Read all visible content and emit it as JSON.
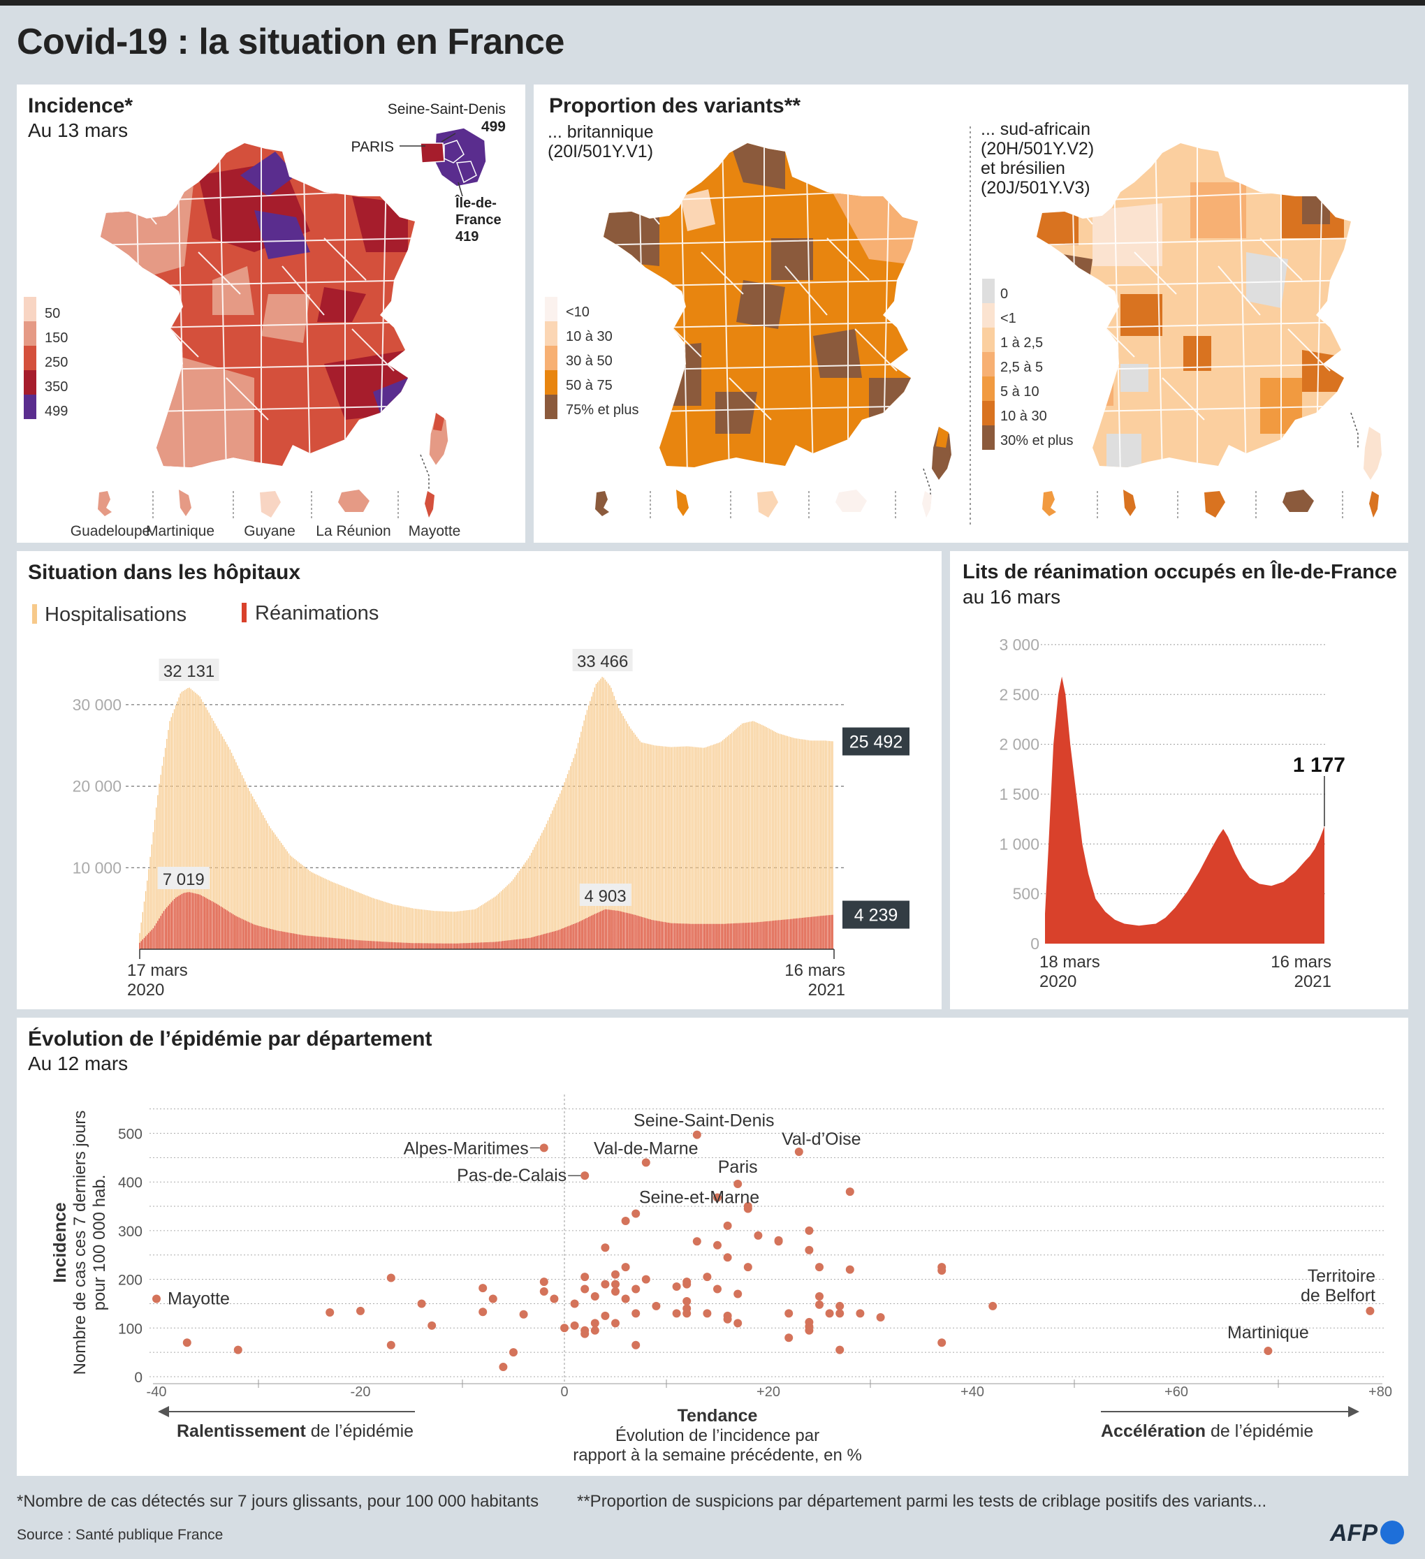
{
  "header": {
    "title": "Covid-19 : la situation en France"
  },
  "incidence": {
    "title": "Incidence*",
    "subtitle": "Au 13 mars",
    "idf_labels": {
      "ssd": "Seine-Saint-Denis",
      "ssd_val": "499",
      "paris": "PARIS",
      "idf1": "Île-de-",
      "idf2": "France",
      "idf_val": "419"
    },
    "legend": [
      {
        "label": "50",
        "color": "#f8d5c3"
      },
      {
        "label": "150",
        "color": "#e59a85"
      },
      {
        "label": "250",
        "color": "#d4503c"
      },
      {
        "label": "350",
        "color": "#a61d2c"
      },
      {
        "label": "499",
        "color": "#5a2d8e"
      }
    ],
    "territories": [
      "Guadeloupe",
      "Martinique",
      "Guyane",
      "La Réunion",
      "Mayotte"
    ]
  },
  "variants": {
    "title": "Proportion des variants**",
    "uk_label1": "... britannique",
    "uk_label2": "(20I/501Y.V1)",
    "sa_label1": "... sud-africain",
    "sa_label2": "(20H/501Y.V2)",
    "sa_label3": "et brésilien",
    "sa_label4": "(20J/501Y.V3)",
    "uk_legend": [
      {
        "label": "<10",
        "color": "#fbf2ee"
      },
      {
        "label": "10 à 30",
        "color": "#fbd6b4"
      },
      {
        "label": "30 à 50",
        "color": "#f7b073"
      },
      {
        "label": "50 à 75",
        "color": "#e8850f"
      },
      {
        "label": "75% et plus",
        "color": "#8b5a3c"
      }
    ],
    "sa_legend": [
      {
        "label": "0",
        "color": "#dedede"
      },
      {
        "label": "<1",
        "color": "#fbe3d0"
      },
      {
        "label": "1 à 2,5",
        "color": "#fbcf9f"
      },
      {
        "label": "2,5 à 5",
        "color": "#f7b073"
      },
      {
        "label": "5 à 10",
        "color": "#f19a40"
      },
      {
        "label": "10 à 30",
        "color": "#d97320"
      },
      {
        "label": "30% et plus",
        "color": "#8b5a3c"
      }
    ]
  },
  "hospitals": {
    "title": "Situation dans les hôpitaux",
    "legend_hosp": "Hospitalisations",
    "legend_rea": "Réanimations",
    "peak1_hosp": "32 131",
    "peak2_hosp": "33 466",
    "last_hosp": "25 492",
    "peak1_rea": "7 019",
    "peak2_rea": "4 903",
    "last_rea": "4 239",
    "start_date1": "17 mars",
    "start_date2": "2020",
    "end_date1": "16 mars",
    "end_date2": "2021",
    "colors": {
      "hosp": "#f7c98a",
      "rea": "#d9412b"
    }
  },
  "icu_idf": {
    "title": "Lits de réanimation occupés en Île-de-France",
    "subtitle": "au 16 mars",
    "last_value": "1 177",
    "start_date1": "18 mars",
    "start_date2": "2020",
    "end_date1": "16 mars",
    "end_date2": "2021",
    "color": "#d9412b"
  },
  "scatter": {
    "title": "Évolution de l’épidémie par département",
    "subtitle": "Au 12 mars",
    "ylabel1": "Incidence",
    "ylabel2": "Nombre de cas ces 7 derniers jours",
    "ylabel3": "pour 100 000 hab.",
    "xlabel1": "Tendance",
    "xlabel2": "Évolution de l’incidence par",
    "xlabel3": "rapport à la semaine précédente, en %",
    "left_arrow_bold": "Ralentissement",
    "left_arrow_rest": " de l’épidémie",
    "right_arrow_bold": "Accélération",
    "right_arrow_rest": " de l’épidémie",
    "dot_color": "#d4735a"
  },
  "footer": {
    "note1": "*Nombre de cas détectés sur 7 jours glissants, pour 100 000 habitants",
    "note2": "**Proportion de suspicions par département parmi les tests de criblage positifs des variants...",
    "source": "Source : Santé publique France",
    "logo": "AFP"
  },
  "chart_data": [
    {
      "type": "area",
      "title": "Situation dans les hôpitaux",
      "x_start": "17 mars 2020",
      "x_end": "16 mars 2021",
      "ylim": [
        0,
        36000
      ],
      "yticks": [
        "10 000",
        "20 000",
        "30 000"
      ],
      "series": [
        {
          "name": "Hospitalisations",
          "points": [
            [
              0,
              2000
            ],
            [
              6,
              9000
            ],
            [
              14,
              20000
            ],
            [
              22,
              28000
            ],
            [
              30,
              31500
            ],
            [
              36,
              32131
            ],
            [
              44,
              31000
            ],
            [
              54,
              28000
            ],
            [
              66,
              24500
            ],
            [
              80,
              19500
            ],
            [
              95,
              15000
            ],
            [
              110,
              11500
            ],
            [
              125,
              9500
            ],
            [
              140,
              8300
            ],
            [
              155,
              7300
            ],
            [
              170,
              6300
            ],
            [
              185,
              5500
            ],
            [
              200,
              5000
            ],
            [
              215,
              4700
            ],
            [
              230,
              4600
            ],
            [
              245,
              4900
            ],
            [
              260,
              6500
            ],
            [
              272,
              8400
            ],
            [
              284,
              11200
            ],
            [
              296,
              15000
            ],
            [
              308,
              19500
            ],
            [
              318,
              24000
            ],
            [
              326,
              29000
            ],
            [
              333,
              32500
            ],
            [
              338,
              33466
            ],
            [
              344,
              32200
            ],
            [
              350,
              29500
            ],
            [
              358,
              27200
            ],
            [
              366,
              25400
            ],
            [
              376,
              25000
            ],
            [
              388,
              24800
            ],
            [
              400,
              24900
            ],
            [
              412,
              24700
            ],
            [
              424,
              25400
            ],
            [
              432,
              26500
            ],
            [
              440,
              27700
            ],
            [
              448,
              28000
            ],
            [
              456,
              27400
            ],
            [
              466,
              26500
            ],
            [
              478,
              25900
            ],
            [
              490,
              25600
            ],
            [
              500,
              25600
            ],
            [
              507,
              25492
            ]
          ]
        },
        {
          "name": "Réanimations",
          "points": [
            [
              0,
              800
            ],
            [
              10,
              2600
            ],
            [
              18,
              4800
            ],
            [
              26,
              6300
            ],
            [
              32,
              6900
            ],
            [
              36,
              7019
            ],
            [
              44,
              6700
            ],
            [
              56,
              5600
            ],
            [
              70,
              4100
            ],
            [
              84,
              3000
            ],
            [
              100,
              2300
            ],
            [
              120,
              1700
            ],
            [
              140,
              1400
            ],
            [
              160,
              1100
            ],
            [
              180,
              900
            ],
            [
              200,
              750
            ],
            [
              230,
              700
            ],
            [
              260,
              900
            ],
            [
              285,
              1400
            ],
            [
              305,
              2300
            ],
            [
              320,
              3300
            ],
            [
              332,
              4300
            ],
            [
              340,
              4903
            ],
            [
              350,
              4700
            ],
            [
              362,
              4200
            ],
            [
              374,
              3600
            ],
            [
              388,
              3200
            ],
            [
              405,
              3100
            ],
            [
              425,
              3100
            ],
            [
              450,
              3300
            ],
            [
              475,
              3700
            ],
            [
              495,
              4050
            ],
            [
              507,
              4239
            ]
          ]
        }
      ]
    },
    {
      "type": "area",
      "title": "Lits de réanimation occupés en Île-de-France",
      "x_start": "18 mars 2020",
      "x_end": "16 mars 2021",
      "ylim": [
        0,
        3000
      ],
      "yticks": [
        "0",
        "500",
        "1 000",
        "1 500",
        "2 000",
        "2 500",
        "3 000"
      ],
      "series": [
        {
          "name": "Réanimation Île-de-France",
          "points": [
            [
              0,
              300
            ],
            [
              3,
              1000
            ],
            [
              7,
              2000
            ],
            [
              11,
              2500
            ],
            [
              14,
              2680
            ],
            [
              17,
              2500
            ],
            [
              21,
              2000
            ],
            [
              26,
              1500
            ],
            [
              31,
              1000
            ],
            [
              36,
              700
            ],
            [
              42,
              450
            ],
            [
              50,
              320
            ],
            [
              58,
              240
            ],
            [
              66,
              200
            ],
            [
              78,
              180
            ],
            [
              92,
              200
            ],
            [
              100,
              260
            ],
            [
              108,
              360
            ],
            [
              118,
              520
            ],
            [
              128,
              720
            ],
            [
              138,
              950
            ],
            [
              144,
              1080
            ],
            [
              148,
              1150
            ],
            [
              152,
              1070
            ],
            [
              158,
              900
            ],
            [
              164,
              760
            ],
            [
              170,
              660
            ],
            [
              178,
              600
            ],
            [
              188,
              580
            ],
            [
              198,
              620
            ],
            [
              208,
              720
            ],
            [
              216,
              830
            ],
            [
              220,
              880
            ],
            [
              224,
              950
            ],
            [
              228,
              1050
            ],
            [
              232,
              1177
            ]
          ]
        }
      ]
    },
    {
      "type": "scatter",
      "title": "Évolution de l’épidémie par département",
      "xlabel": "Tendance",
      "ylabel": "Incidence",
      "xlim": [
        -40,
        80
      ],
      "ylim": [
        0,
        550
      ],
      "xticks": [
        "-40",
        "-20",
        "0",
        "+20",
        "+40",
        "+60",
        "+80"
      ],
      "yticks": [
        "0",
        "100",
        "200",
        "300",
        "400",
        "500"
      ],
      "labeled": [
        {
          "name": "Mayotte",
          "x": -40,
          "y": 160
        },
        {
          "name": "Alpes-Maritimes",
          "x": -2,
          "y": 470
        },
        {
          "name": "Pas-de-Calais",
          "x": 2,
          "y": 413
        },
        {
          "name": "Val-de-Marne",
          "x": 8,
          "y": 440
        },
        {
          "name": "Seine-Saint-Denis",
          "x": 13,
          "y": 497
        },
        {
          "name": "Seine-et-Marne",
          "x": 15,
          "y": 368
        },
        {
          "name": "Paris",
          "x": 17,
          "y": 396
        },
        {
          "name": "Val-d’Oise",
          "x": 23,
          "y": 462
        },
        {
          "name": "Martinique",
          "x": 69,
          "y": 53
        },
        {
          "name": "Territoire de Belfort",
          "x": 79,
          "y": 135
        }
      ],
      "points": [
        [
          -37,
          70
        ],
        [
          -32,
          55
        ],
        [
          -23,
          132
        ],
        [
          -20,
          135
        ],
        [
          -17,
          203
        ],
        [
          -17,
          65
        ],
        [
          -14,
          150
        ],
        [
          -13,
          105
        ],
        [
          -8,
          182
        ],
        [
          -8,
          133
        ],
        [
          -7,
          160
        ],
        [
          -6,
          20
        ],
        [
          -5,
          50
        ],
        [
          -4,
          128
        ],
        [
          -2,
          195
        ],
        [
          -2,
          175
        ],
        [
          -1,
          160
        ],
        [
          0,
          100
        ],
        [
          1,
          150
        ],
        [
          1,
          105
        ],
        [
          2,
          205
        ],
        [
          2,
          180
        ],
        [
          2,
          95
        ],
        [
          2,
          88
        ],
        [
          3,
          110
        ],
        [
          3,
          95
        ],
        [
          3,
          165
        ],
        [
          4,
          190
        ],
        [
          4,
          265
        ],
        [
          4,
          125
        ],
        [
          5,
          210
        ],
        [
          5,
          190
        ],
        [
          5,
          175
        ],
        [
          5,
          110
        ],
        [
          6,
          320
        ],
        [
          6,
          160
        ],
        [
          6,
          225
        ],
        [
          7,
          335
        ],
        [
          7,
          180
        ],
        [
          7,
          130
        ],
        [
          7,
          65
        ],
        [
          8,
          200
        ],
        [
          9,
          145
        ],
        [
          11,
          130
        ],
        [
          11,
          185
        ],
        [
          12,
          195
        ],
        [
          12,
          190
        ],
        [
          12,
          155
        ],
        [
          12,
          140
        ],
        [
          12,
          130
        ],
        [
          13,
          278
        ],
        [
          14,
          205
        ],
        [
          14,
          130
        ],
        [
          15,
          270
        ],
        [
          15,
          180
        ],
        [
          16,
          310
        ],
        [
          16,
          245
        ],
        [
          16,
          125
        ],
        [
          16,
          118
        ],
        [
          17,
          170
        ],
        [
          17,
          110
        ],
        [
          18,
          350
        ],
        [
          18,
          345
        ],
        [
          18,
          225
        ],
        [
          19,
          290
        ],
        [
          21,
          280
        ],
        [
          21,
          278
        ],
        [
          22,
          130
        ],
        [
          22,
          80
        ],
        [
          24,
          300
        ],
        [
          24,
          260
        ],
        [
          24,
          112
        ],
        [
          24,
          103
        ],
        [
          24,
          95
        ],
        [
          25,
          225
        ],
        [
          25,
          165
        ],
        [
          25,
          148
        ],
        [
          26,
          130
        ],
        [
          27,
          145
        ],
        [
          27,
          130
        ],
        [
          27,
          55
        ],
        [
          28,
          380
        ],
        [
          28,
          220
        ],
        [
          29,
          130
        ],
        [
          31,
          122
        ],
        [
          37,
          225
        ],
        [
          37,
          218
        ],
        [
          37,
          70
        ],
        [
          42,
          145
        ]
      ]
    }
  ]
}
